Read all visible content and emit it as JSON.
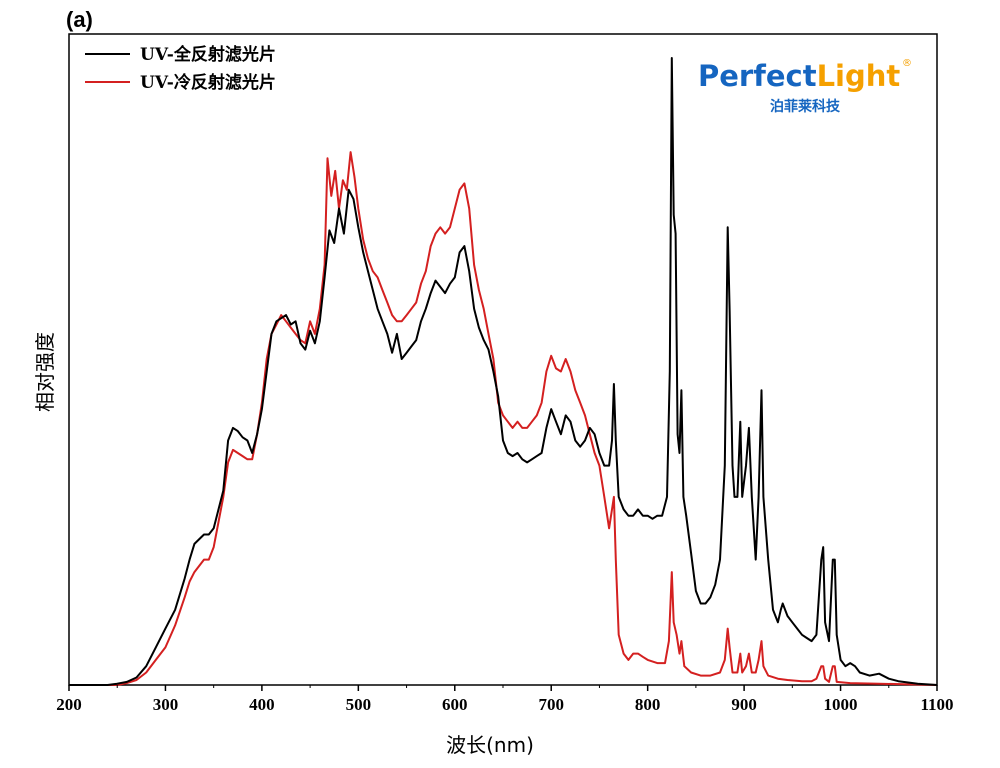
{
  "chart_data": {
    "type": "line",
    "panel_label": "(a)",
    "xlabel": "波长(nm)",
    "ylabel": "相对强度",
    "xlim": [
      200,
      1100
    ],
    "ylim": [
      0,
      1.0
    ],
    "x_ticks": [
      200,
      300,
      400,
      500,
      600,
      700,
      800,
      900,
      1000,
      1100
    ],
    "legend_position": "top-left",
    "series": [
      {
        "name": "UV-全反射滤光片",
        "color": "#000000",
        "points": [
          [
            200,
            0
          ],
          [
            240,
            0
          ],
          [
            250,
            0.002
          ],
          [
            260,
            0.005
          ],
          [
            270,
            0.012
          ],
          [
            280,
            0.03
          ],
          [
            290,
            0.06
          ],
          [
            300,
            0.09
          ],
          [
            310,
            0.12
          ],
          [
            320,
            0.17
          ],
          [
            325,
            0.2
          ],
          [
            330,
            0.225
          ],
          [
            340,
            0.24
          ],
          [
            345,
            0.24
          ],
          [
            350,
            0.25
          ],
          [
            355,
            0.28
          ],
          [
            360,
            0.31
          ],
          [
            365,
            0.39
          ],
          [
            370,
            0.41
          ],
          [
            375,
            0.405
          ],
          [
            380,
            0.395
          ],
          [
            385,
            0.39
          ],
          [
            390,
            0.37
          ],
          [
            395,
            0.4
          ],
          [
            400,
            0.44
          ],
          [
            405,
            0.5
          ],
          [
            410,
            0.56
          ],
          [
            415,
            0.58
          ],
          [
            420,
            0.585
          ],
          [
            425,
            0.59
          ],
          [
            430,
            0.575
          ],
          [
            435,
            0.58
          ],
          [
            440,
            0.545
          ],
          [
            445,
            0.535
          ],
          [
            450,
            0.565
          ],
          [
            455,
            0.545
          ],
          [
            460,
            0.58
          ],
          [
            465,
            0.65
          ],
          [
            470,
            0.725
          ],
          [
            475,
            0.705
          ],
          [
            480,
            0.76
          ],
          [
            485,
            0.72
          ],
          [
            490,
            0.79
          ],
          [
            495,
            0.775
          ],
          [
            500,
            0.73
          ],
          [
            505,
            0.69
          ],
          [
            510,
            0.66
          ],
          [
            515,
            0.63
          ],
          [
            520,
            0.6
          ],
          [
            525,
            0.58
          ],
          [
            530,
            0.56
          ],
          [
            535,
            0.53
          ],
          [
            540,
            0.56
          ],
          [
            545,
            0.52
          ],
          [
            550,
            0.53
          ],
          [
            555,
            0.54
          ],
          [
            560,
            0.55
          ],
          [
            565,
            0.58
          ],
          [
            570,
            0.6
          ],
          [
            575,
            0.625
          ],
          [
            580,
            0.645
          ],
          [
            585,
            0.635
          ],
          [
            590,
            0.625
          ],
          [
            595,
            0.64
          ],
          [
            600,
            0.65
          ],
          [
            605,
            0.69
          ],
          [
            610,
            0.7
          ],
          [
            615,
            0.66
          ],
          [
            620,
            0.6
          ],
          [
            625,
            0.57
          ],
          [
            630,
            0.55
          ],
          [
            635,
            0.535
          ],
          [
            640,
            0.5
          ],
          [
            645,
            0.46
          ],
          [
            650,
            0.39
          ],
          [
            655,
            0.37
          ],
          [
            660,
            0.365
          ],
          [
            665,
            0.37
          ],
          [
            670,
            0.36
          ],
          [
            675,
            0.355
          ],
          [
            680,
            0.36
          ],
          [
            685,
            0.365
          ],
          [
            690,
            0.37
          ],
          [
            695,
            0.41
          ],
          [
            700,
            0.44
          ],
          [
            705,
            0.42
          ],
          [
            710,
            0.4
          ],
          [
            715,
            0.43
          ],
          [
            720,
            0.42
          ],
          [
            725,
            0.39
          ],
          [
            730,
            0.38
          ],
          [
            735,
            0.39
          ],
          [
            740,
            0.41
          ],
          [
            745,
            0.4
          ],
          [
            750,
            0.37
          ],
          [
            755,
            0.35
          ],
          [
            760,
            0.35
          ],
          [
            763,
            0.39
          ],
          [
            765,
            0.48
          ],
          [
            767,
            0.39
          ],
          [
            770,
            0.3
          ],
          [
            775,
            0.28
          ],
          [
            780,
            0.27
          ],
          [
            785,
            0.27
          ],
          [
            790,
            0.28
          ],
          [
            795,
            0.27
          ],
          [
            800,
            0.27
          ],
          [
            805,
            0.265
          ],
          [
            810,
            0.27
          ],
          [
            815,
            0.27
          ],
          [
            820,
            0.3
          ],
          [
            823,
            0.5
          ],
          [
            825,
            1.0
          ],
          [
            827,
            0.75
          ],
          [
            829,
            0.72
          ],
          [
            831,
            0.4
          ],
          [
            833,
            0.37
          ],
          [
            835,
            0.47
          ],
          [
            837,
            0.3
          ],
          [
            840,
            0.27
          ],
          [
            845,
            0.21
          ],
          [
            850,
            0.15
          ],
          [
            855,
            0.13
          ],
          [
            860,
            0.13
          ],
          [
            865,
            0.14
          ],
          [
            870,
            0.16
          ],
          [
            875,
            0.2
          ],
          [
            880,
            0.35
          ],
          [
            883,
            0.73
          ],
          [
            885,
            0.6
          ],
          [
            888,
            0.35
          ],
          [
            890,
            0.3
          ],
          [
            893,
            0.3
          ],
          [
            896,
            0.42
          ],
          [
            898,
            0.3
          ],
          [
            902,
            0.35
          ],
          [
            905,
            0.41
          ],
          [
            908,
            0.3
          ],
          [
            912,
            0.2
          ],
          [
            915,
            0.3
          ],
          [
            918,
            0.47
          ],
          [
            920,
            0.3
          ],
          [
            925,
            0.2
          ],
          [
            930,
            0.12
          ],
          [
            935,
            0.1
          ],
          [
            938,
            0.12
          ],
          [
            940,
            0.13
          ],
          [
            945,
            0.11
          ],
          [
            950,
            0.1
          ],
          [
            955,
            0.09
          ],
          [
            960,
            0.08
          ],
          [
            965,
            0.075
          ],
          [
            970,
            0.07
          ],
          [
            975,
            0.08
          ],
          [
            980,
            0.2
          ],
          [
            982,
            0.22
          ],
          [
            984,
            0.1
          ],
          [
            988,
            0.07
          ],
          [
            992,
            0.2
          ],
          [
            994,
            0.2
          ],
          [
            996,
            0.08
          ],
          [
            1000,
            0.04
          ],
          [
            1005,
            0.03
          ],
          [
            1010,
            0.035
          ],
          [
            1015,
            0.03
          ],
          [
            1020,
            0.02
          ],
          [
            1030,
            0.015
          ],
          [
            1040,
            0.018
          ],
          [
            1050,
            0.01
          ],
          [
            1060,
            0.006
          ],
          [
            1070,
            0.004
          ],
          [
            1080,
            0.002
          ],
          [
            1090,
            0.001
          ],
          [
            1100,
            0
          ]
        ]
      },
      {
        "name": "UV-冷反射滤光片",
        "color": "#d42020",
        "points": [
          [
            200,
            0
          ],
          [
            250,
            0
          ],
          [
            260,
            0.003
          ],
          [
            270,
            0.008
          ],
          [
            280,
            0.02
          ],
          [
            290,
            0.04
          ],
          [
            300,
            0.06
          ],
          [
            310,
            0.095
          ],
          [
            320,
            0.14
          ],
          [
            325,
            0.165
          ],
          [
            330,
            0.18
          ],
          [
            340,
            0.2
          ],
          [
            345,
            0.2
          ],
          [
            350,
            0.22
          ],
          [
            355,
            0.26
          ],
          [
            360,
            0.3
          ],
          [
            365,
            0.355
          ],
          [
            370,
            0.375
          ],
          [
            375,
            0.37
          ],
          [
            380,
            0.365
          ],
          [
            385,
            0.36
          ],
          [
            390,
            0.36
          ],
          [
            395,
            0.4
          ],
          [
            400,
            0.45
          ],
          [
            405,
            0.52
          ],
          [
            410,
            0.56
          ],
          [
            415,
            0.575
          ],
          [
            420,
            0.59
          ],
          [
            425,
            0.58
          ],
          [
            430,
            0.57
          ],
          [
            435,
            0.56
          ],
          [
            440,
            0.55
          ],
          [
            445,
            0.545
          ],
          [
            450,
            0.58
          ],
          [
            455,
            0.56
          ],
          [
            460,
            0.6
          ],
          [
            465,
            0.67
          ],
          [
            468,
            0.84
          ],
          [
            472,
            0.78
          ],
          [
            476,
            0.82
          ],
          [
            480,
            0.76
          ],
          [
            484,
            0.805
          ],
          [
            488,
            0.79
          ],
          [
            492,
            0.85
          ],
          [
            496,
            0.81
          ],
          [
            500,
            0.76
          ],
          [
            505,
            0.71
          ],
          [
            510,
            0.68
          ],
          [
            515,
            0.66
          ],
          [
            520,
            0.65
          ],
          [
            525,
            0.63
          ],
          [
            530,
            0.61
          ],
          [
            535,
            0.59
          ],
          [
            540,
            0.58
          ],
          [
            545,
            0.58
          ],
          [
            550,
            0.59
          ],
          [
            555,
            0.6
          ],
          [
            560,
            0.61
          ],
          [
            565,
            0.64
          ],
          [
            570,
            0.66
          ],
          [
            575,
            0.7
          ],
          [
            580,
            0.72
          ],
          [
            585,
            0.73
          ],
          [
            590,
            0.72
          ],
          [
            595,
            0.73
          ],
          [
            600,
            0.76
          ],
          [
            605,
            0.79
          ],
          [
            610,
            0.8
          ],
          [
            615,
            0.76
          ],
          [
            620,
            0.67
          ],
          [
            625,
            0.63
          ],
          [
            630,
            0.6
          ],
          [
            635,
            0.56
          ],
          [
            640,
            0.52
          ],
          [
            645,
            0.45
          ],
          [
            650,
            0.43
          ],
          [
            655,
            0.42
          ],
          [
            660,
            0.41
          ],
          [
            665,
            0.42
          ],
          [
            670,
            0.41
          ],
          [
            675,
            0.41
          ],
          [
            680,
            0.42
          ],
          [
            685,
            0.43
          ],
          [
            690,
            0.45
          ],
          [
            695,
            0.5
          ],
          [
            700,
            0.525
          ],
          [
            705,
            0.505
          ],
          [
            710,
            0.5
          ],
          [
            715,
            0.52
          ],
          [
            720,
            0.5
          ],
          [
            725,
            0.47
          ],
          [
            730,
            0.45
          ],
          [
            735,
            0.43
          ],
          [
            740,
            0.4
          ],
          [
            745,
            0.37
          ],
          [
            750,
            0.35
          ],
          [
            755,
            0.3
          ],
          [
            760,
            0.25
          ],
          [
            763,
            0.28
          ],
          [
            765,
            0.3
          ],
          [
            767,
            0.2
          ],
          [
            770,
            0.08
          ],
          [
            775,
            0.05
          ],
          [
            780,
            0.04
          ],
          [
            785,
            0.05
          ],
          [
            790,
            0.05
          ],
          [
            795,
            0.045
          ],
          [
            800,
            0.04
          ],
          [
            810,
            0.035
          ],
          [
            818,
            0.035
          ],
          [
            822,
            0.07
          ],
          [
            825,
            0.18
          ],
          [
            827,
            0.1
          ],
          [
            830,
            0.08
          ],
          [
            833,
            0.05
          ],
          [
            835,
            0.07
          ],
          [
            838,
            0.03
          ],
          [
            845,
            0.02
          ],
          [
            855,
            0.015
          ],
          [
            865,
            0.015
          ],
          [
            875,
            0.02
          ],
          [
            880,
            0.04
          ],
          [
            883,
            0.09
          ],
          [
            885,
            0.06
          ],
          [
            888,
            0.02
          ],
          [
            893,
            0.02
          ],
          [
            896,
            0.05
          ],
          [
            898,
            0.02
          ],
          [
            902,
            0.03
          ],
          [
            905,
            0.05
          ],
          [
            908,
            0.02
          ],
          [
            912,
            0.02
          ],
          [
            915,
            0.04
          ],
          [
            918,
            0.07
          ],
          [
            920,
            0.03
          ],
          [
            925,
            0.015
          ],
          [
            935,
            0.01
          ],
          [
            945,
            0.008
          ],
          [
            960,
            0.006
          ],
          [
            970,
            0.006
          ],
          [
            975,
            0.01
          ],
          [
            980,
            0.03
          ],
          [
            982,
            0.03
          ],
          [
            984,
            0.01
          ],
          [
            988,
            0.005
          ],
          [
            992,
            0.03
          ],
          [
            994,
            0.03
          ],
          [
            996,
            0.005
          ],
          [
            1010,
            0.003
          ],
          [
            1040,
            0.002
          ],
          [
            1100,
            0
          ]
        ]
      }
    ]
  },
  "logo": {
    "text_part1": "Perfect",
    "text_part2": "Light",
    "registered": "®",
    "subtitle": "泊菲莱科技",
    "color_blue": "#1565c0",
    "color_orange": "#f5a000"
  }
}
